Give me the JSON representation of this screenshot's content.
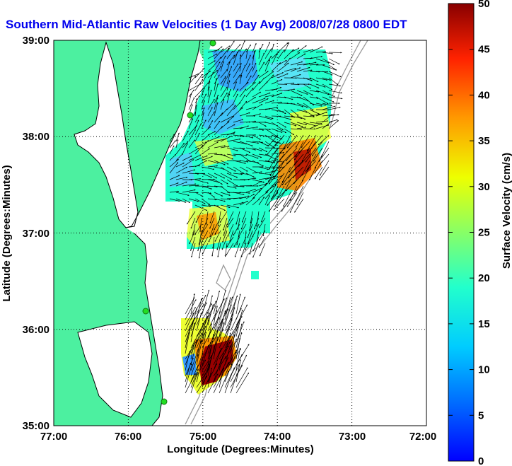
{
  "title": "Southern Mid-Atlantic Raw Velocities (1 Day Avg) 2008/07/28 0800 EDT",
  "map": {
    "xlabel": "Longitude (Degrees:Minutes)",
    "ylabel": "Latitude (Degrees:Minutes)",
    "x_ticks": [
      "77:00",
      "76:00",
      "75:00",
      "74:00",
      "73:00",
      "72:00"
    ],
    "y_ticks": [
      "39:00",
      "38:00",
      "37:00",
      "36:00",
      "35:00"
    ],
    "x_range_deg": [
      -77,
      -72
    ],
    "y_range_deg": [
      35,
      39
    ],
    "grid": "dotted",
    "colors": {
      "land": "#4cf0a0",
      "water": "#ffffff",
      "coastline": "#000000",
      "bathymetry": "#9a9a9a",
      "station": "#22dd22",
      "title": "#0000ee"
    }
  },
  "colorbar": {
    "label": "Surface Velocity (cm/s)",
    "ticks": [
      "50",
      "45",
      "40",
      "35",
      "30",
      "25",
      "20",
      "15",
      "10",
      "5",
      "0"
    ],
    "range": [
      0,
      50
    ],
    "colormap": "jet"
  }
}
